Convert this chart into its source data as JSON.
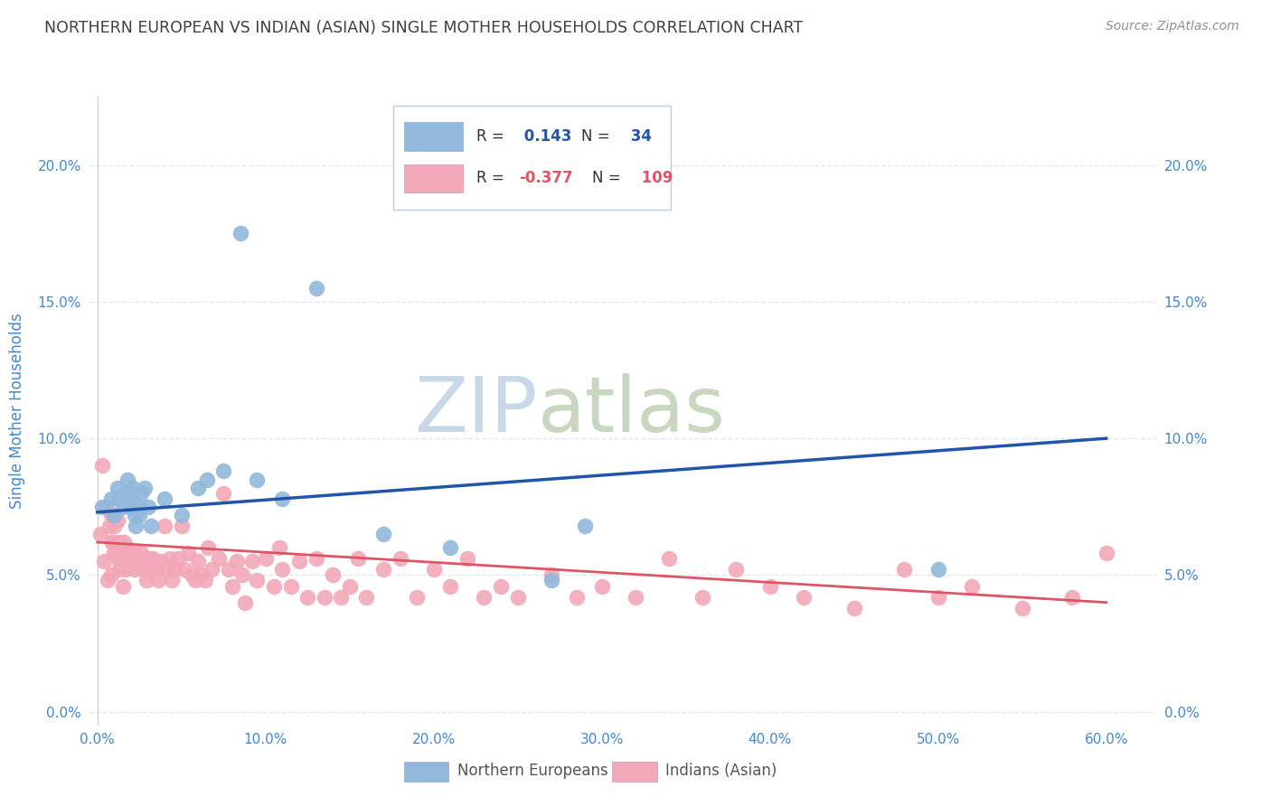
{
  "title": "NORTHERN EUROPEAN VS INDIAN (ASIAN) SINGLE MOTHER HOUSEHOLDS CORRELATION CHART",
  "source": "Source: ZipAtlas.com",
  "ylabel": "Single Mother Households",
  "xlabel_ticks": [
    "0.0%",
    "10.0%",
    "20.0%",
    "30.0%",
    "40.0%",
    "50.0%",
    "60.0%"
  ],
  "xlabel_vals": [
    0,
    0.1,
    0.2,
    0.3,
    0.4,
    0.5,
    0.6
  ],
  "ylabel_ticks": [
    "0.0%",
    "5.0%",
    "10.0%",
    "15.0%",
    "20.0%"
  ],
  "ylabel_vals": [
    0,
    0.05,
    0.1,
    0.15,
    0.2
  ],
  "ylim": [
    -0.005,
    0.225
  ],
  "xlim": [
    -0.005,
    0.63
  ],
  "blue_R": 0.143,
  "blue_N": 34,
  "pink_R": -0.377,
  "pink_N": 109,
  "blue_color": "#92b8db",
  "pink_color": "#f2a8b8",
  "blue_line_color": "#2255aa",
  "pink_line_color": "#dd5566",
  "title_color": "#404040",
  "source_color": "#909090",
  "watermark_zip_color": "#c8d8e8",
  "watermark_atlas_color": "#c8d8c0",
  "axis_label_color": "#4488cc",
  "background_color": "#ffffff",
  "grid_color": "#dde8f0",
  "blue_x": [
    0.003,
    0.008,
    0.01,
    0.012,
    0.013,
    0.015,
    0.017,
    0.018,
    0.019,
    0.02,
    0.02,
    0.021,
    0.022,
    0.023,
    0.025,
    0.025,
    0.026,
    0.028,
    0.03,
    0.032,
    0.04,
    0.05,
    0.06,
    0.065,
    0.075,
    0.085,
    0.095,
    0.11,
    0.13,
    0.17,
    0.21,
    0.27,
    0.29,
    0.5
  ],
  "blue_y": [
    0.075,
    0.078,
    0.072,
    0.082,
    0.078,
    0.075,
    0.08,
    0.085,
    0.08,
    0.078,
    0.075,
    0.082,
    0.072,
    0.068,
    0.075,
    0.072,
    0.08,
    0.082,
    0.075,
    0.068,
    0.078,
    0.072,
    0.082,
    0.085,
    0.088,
    0.175,
    0.085,
    0.078,
    0.155,
    0.065,
    0.06,
    0.048,
    0.068,
    0.052
  ],
  "pink_x": [
    0.003,
    0.005,
    0.007,
    0.008,
    0.009,
    0.01,
    0.01,
    0.011,
    0.012,
    0.013,
    0.013,
    0.014,
    0.015,
    0.016,
    0.016,
    0.017,
    0.018,
    0.019,
    0.02,
    0.021,
    0.022,
    0.022,
    0.023,
    0.024,
    0.025,
    0.026,
    0.027,
    0.028,
    0.029,
    0.03,
    0.031,
    0.032,
    0.033,
    0.035,
    0.036,
    0.038,
    0.04,
    0.041,
    0.043,
    0.044,
    0.046,
    0.048,
    0.05,
    0.052,
    0.054,
    0.056,
    0.058,
    0.06,
    0.062,
    0.064,
    0.066,
    0.068,
    0.072,
    0.075,
    0.078,
    0.08,
    0.083,
    0.086,
    0.088,
    0.092,
    0.095,
    0.1,
    0.105,
    0.108,
    0.11,
    0.115,
    0.12,
    0.125,
    0.13,
    0.135,
    0.14,
    0.145,
    0.15,
    0.155,
    0.16,
    0.17,
    0.18,
    0.19,
    0.2,
    0.21,
    0.22,
    0.23,
    0.24,
    0.25,
    0.27,
    0.285,
    0.3,
    0.32,
    0.34,
    0.36,
    0.38,
    0.4,
    0.42,
    0.45,
    0.48,
    0.5,
    0.52,
    0.55,
    0.58,
    0.6,
    0.002,
    0.004,
    0.006,
    0.008,
    0.009,
    0.011,
    0.013,
    0.015,
    0.017
  ],
  "pink_y": [
    0.09,
    0.075,
    0.068,
    0.072,
    0.062,
    0.068,
    0.058,
    0.062,
    0.07,
    0.055,
    0.062,
    0.058,
    0.06,
    0.062,
    0.055,
    0.052,
    0.06,
    0.058,
    0.055,
    0.058,
    0.056,
    0.052,
    0.058,
    0.054,
    0.055,
    0.058,
    0.052,
    0.056,
    0.048,
    0.054,
    0.056,
    0.052,
    0.056,
    0.052,
    0.048,
    0.055,
    0.068,
    0.052,
    0.056,
    0.048,
    0.052,
    0.056,
    0.068,
    0.052,
    0.058,
    0.05,
    0.048,
    0.055,
    0.05,
    0.048,
    0.06,
    0.052,
    0.056,
    0.08,
    0.052,
    0.046,
    0.055,
    0.05,
    0.04,
    0.055,
    0.048,
    0.056,
    0.046,
    0.06,
    0.052,
    0.046,
    0.055,
    0.042,
    0.056,
    0.042,
    0.05,
    0.042,
    0.046,
    0.056,
    0.042,
    0.052,
    0.056,
    0.042,
    0.052,
    0.046,
    0.056,
    0.042,
    0.046,
    0.042,
    0.05,
    0.042,
    0.046,
    0.042,
    0.056,
    0.042,
    0.052,
    0.046,
    0.042,
    0.038,
    0.052,
    0.042,
    0.046,
    0.038,
    0.042,
    0.058,
    0.065,
    0.055,
    0.048,
    0.05,
    0.062,
    0.058,
    0.052,
    0.046,
    0.055
  ]
}
